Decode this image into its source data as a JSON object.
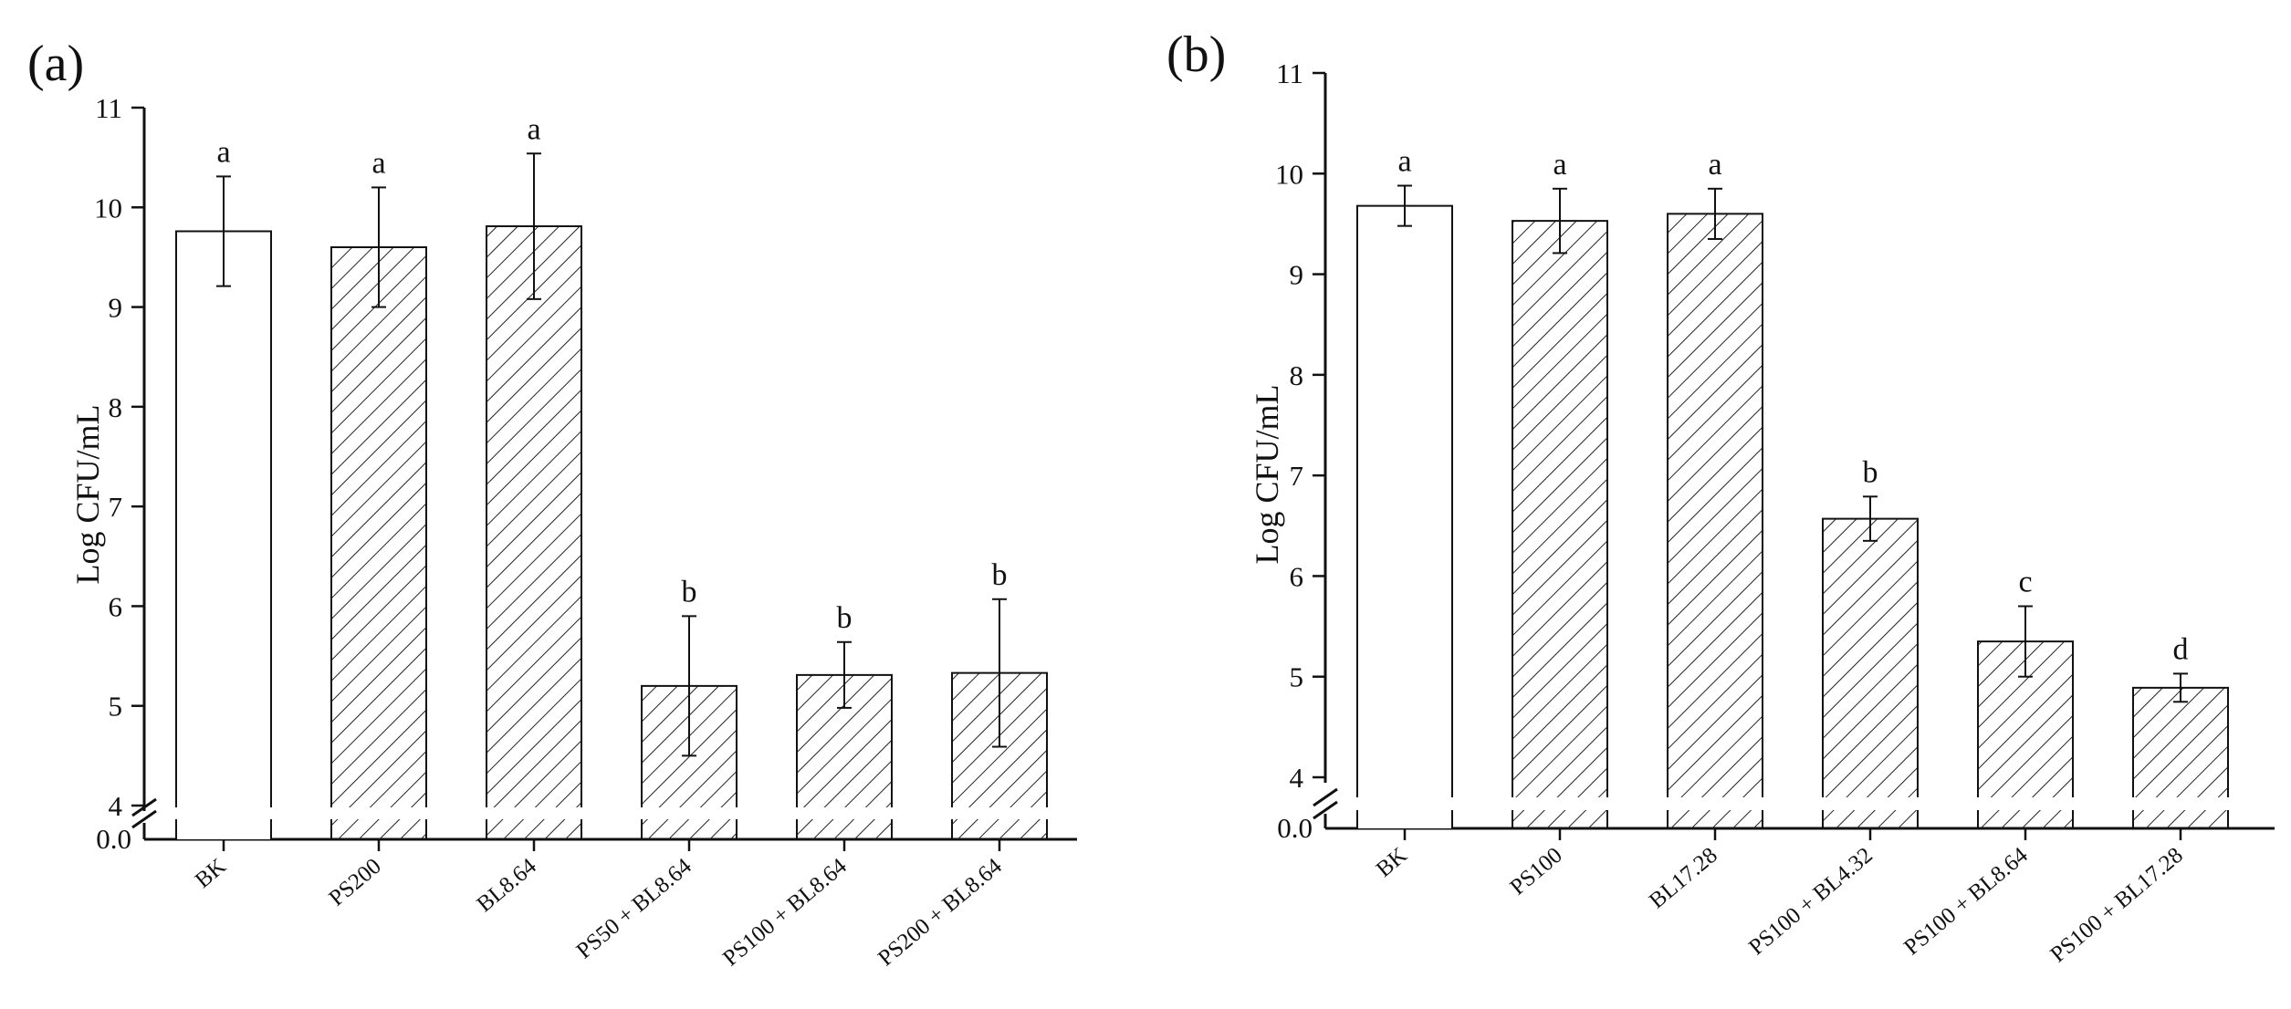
{
  "chart_data": [
    {
      "type": "bar",
      "panel_label": "(a)",
      "title": "",
      "xlabel": "",
      "ylabel": "Log CFU/mL",
      "ylim": [
        4,
        11
      ],
      "yticks": [
        "4",
        "5",
        "6",
        "7",
        "8",
        "9",
        "10",
        "11"
      ],
      "axis_break_label": "0.0",
      "categories": [
        "BK",
        "PS200",
        "BL8.64",
        "PS50 + BL8.64",
        "PS100 + BL8.64",
        "PS200 + BL8.64"
      ],
      "values": [
        9.76,
        9.6,
        9.81,
        5.2,
        5.31,
        5.33
      ],
      "errors": [
        0.55,
        0.6,
        0.73,
        0.7,
        0.33,
        0.74
      ],
      "significance": [
        "a",
        "a",
        "a",
        "b",
        "b",
        "b"
      ],
      "patterns": [
        "blank",
        "hatched",
        "hatched",
        "hatched",
        "hatched",
        "hatched"
      ],
      "grid": false
    },
    {
      "type": "bar",
      "panel_label": "(b)",
      "title": "",
      "xlabel": "",
      "ylabel": "Log CFU/mL",
      "ylim": [
        4,
        11
      ],
      "yticks": [
        "4",
        "5",
        "6",
        "7",
        "8",
        "9",
        "10",
        "11"
      ],
      "axis_break_label": "0.0",
      "categories": [
        "BK",
        "PS100",
        "BL17.28",
        "PS100 + BL4.32",
        "PS100 + BL8.64",
        "PS100 + BL17.28"
      ],
      "values": [
        9.68,
        9.53,
        9.6,
        6.57,
        5.35,
        4.89
      ],
      "errors": [
        0.2,
        0.32,
        0.25,
        0.22,
        0.35,
        0.14
      ],
      "significance": [
        "a",
        "a",
        "a",
        "b",
        "c",
        "d"
      ],
      "patterns": [
        "blank",
        "hatched",
        "hatched",
        "hatched",
        "hatched",
        "hatched"
      ],
      "grid": false
    }
  ]
}
